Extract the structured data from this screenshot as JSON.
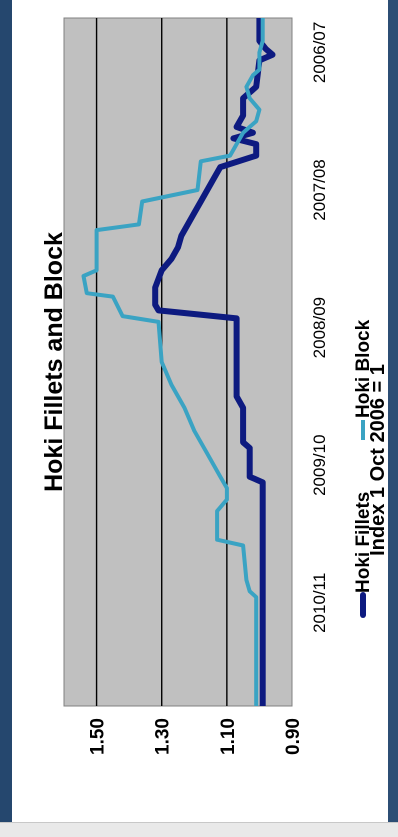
{
  "colors": {
    "frame": "#25476e",
    "plot_bg": "#c0c0c0",
    "grid": "#000000",
    "fillets": "#0d1a80",
    "block": "#3aa3c3"
  },
  "chart_data": {
    "type": "line",
    "orientation": "rotated 90deg clockwise",
    "title": "Hoki Fillets and Block",
    "ylabel": "Index 1 Oct 2006 = 1",
    "xlabel": "",
    "ylim": [
      0.9,
      1.6
    ],
    "yticks": [
      "1.50",
      "1.30",
      "1.10",
      "0.90"
    ],
    "ytick_values": [
      1.5,
      1.3,
      1.1,
      0.9
    ],
    "grid": true,
    "legend": "bottom",
    "xlim": [
      0,
      60
    ],
    "x_tick_labels": [
      "2006/07",
      "2007/08",
      "2008/09",
      "2009/10",
      "2010/11"
    ],
    "x_tick_positions": [
      3,
      15,
      27,
      39,
      51
    ],
    "series": [
      {
        "name": "Hoki Fillets",
        "color": "#0d1a80",
        "points": [
          [
            0,
            1.0
          ],
          [
            2,
            1.0
          ],
          [
            2.7,
            0.98
          ],
          [
            3.2,
            0.96
          ],
          [
            3.7,
            1.0
          ],
          [
            6,
            1.01
          ],
          [
            7,
            1.05
          ],
          [
            8.5,
            1.05
          ],
          [
            9.5,
            1.07
          ],
          [
            10,
            1.02
          ],
          [
            10.5,
            1.08
          ],
          [
            11,
            1.01
          ],
          [
            12,
            1.01
          ],
          [
            13,
            1.12
          ],
          [
            14,
            1.14
          ],
          [
            15,
            1.16
          ],
          [
            16,
            1.18
          ],
          [
            17,
            1.2
          ],
          [
            18,
            1.22
          ],
          [
            19,
            1.24
          ],
          [
            20,
            1.25
          ],
          [
            21,
            1.27
          ],
          [
            22,
            1.3
          ],
          [
            23.5,
            1.32
          ],
          [
            25,
            1.32
          ],
          [
            25.5,
            1.31
          ],
          [
            26.2,
            1.07
          ],
          [
            33,
            1.07
          ],
          [
            34,
            1.05
          ],
          [
            37,
            1.05
          ],
          [
            37.5,
            1.03
          ],
          [
            40,
            1.03
          ],
          [
            40.5,
            0.99
          ],
          [
            47,
            0.99
          ],
          [
            60,
            0.99
          ]
        ]
      },
      {
        "name": "Hoki Block",
        "color": "#3aa3c3",
        "points": [
          [
            0,
            0.99
          ],
          [
            2,
            0.99
          ],
          [
            3,
            1.0
          ],
          [
            4.5,
            1.0
          ],
          [
            5,
            1.02
          ],
          [
            6,
            1.04
          ],
          [
            7,
            1.03
          ],
          [
            8,
            1.0
          ],
          [
            9,
            1.01
          ],
          [
            10,
            1.05
          ],
          [
            11,
            1.07
          ],
          [
            12,
            1.09
          ],
          [
            12.5,
            1.18
          ],
          [
            15,
            1.19
          ],
          [
            16,
            1.36
          ],
          [
            18,
            1.37
          ],
          [
            18.5,
            1.5
          ],
          [
            22,
            1.5
          ],
          [
            22.5,
            1.54
          ],
          [
            24,
            1.53
          ],
          [
            24.3,
            1.45
          ],
          [
            26,
            1.42
          ],
          [
            26.5,
            1.31
          ],
          [
            30,
            1.3
          ],
          [
            32,
            1.27
          ],
          [
            34,
            1.23
          ],
          [
            36,
            1.2
          ],
          [
            38,
            1.16
          ],
          [
            39,
            1.14
          ],
          [
            40,
            1.12
          ],
          [
            41,
            1.1
          ],
          [
            42,
            1.1
          ],
          [
            43,
            1.13
          ],
          [
            45,
            1.13
          ],
          [
            45.5,
            1.13
          ],
          [
            46,
            1.05
          ],
          [
            49,
            1.04
          ],
          [
            50,
            1.03
          ],
          [
            50.5,
            1.01
          ],
          [
            52,
            1.01
          ],
          [
            60,
            1.01
          ]
        ]
      }
    ]
  }
}
